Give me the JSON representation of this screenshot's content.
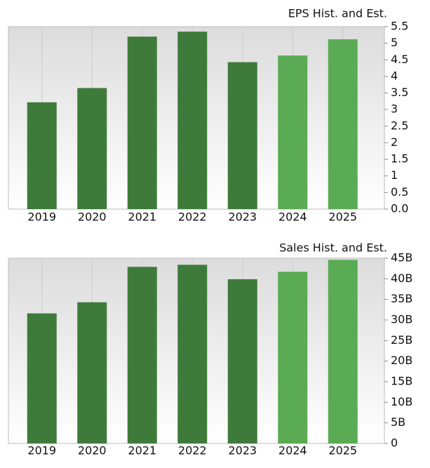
{
  "chart_data": [
    {
      "type": "bar",
      "title": "EPS Hist. and Est.",
      "categories": [
        "2019",
        "2020",
        "2021",
        "2022",
        "2023",
        "2024",
        "2025"
      ],
      "values": [
        3.22,
        3.65,
        5.2,
        5.35,
        4.43,
        4.63,
        5.12
      ],
      "colors": [
        "#3e7b3b",
        "#3e7b3b",
        "#3e7b3b",
        "#3e7b3b",
        "#3e7b3b",
        "#5aab53",
        "#5aab53"
      ],
      "ylim": [
        0,
        5.5
      ],
      "yticks": [
        {
          "value": 0,
          "label": "0.0"
        },
        0.5,
        1,
        1.5,
        2,
        2.5,
        3,
        3.5,
        4,
        4.5,
        5,
        5.5
      ]
    },
    {
      "type": "bar",
      "title": "Sales Hist. and Est.",
      "categories": [
        "2019",
        "2020",
        "2021",
        "2022",
        "2023",
        "2024",
        "2025"
      ],
      "values": [
        31.6,
        34.3,
        42.9,
        43.4,
        39.9,
        41.7,
        44.6
      ],
      "colors": [
        "#3e7b3b",
        "#3e7b3b",
        "#3e7b3b",
        "#3e7b3b",
        "#3e7b3b",
        "#5aab53",
        "#5aab53"
      ],
      "ylim": [
        0,
        45
      ],
      "yticks": [
        0,
        {
          "value": 5,
          "label": "5B"
        },
        {
          "value": 10,
          "label": "10B"
        },
        {
          "value": 15,
          "label": "15B"
        },
        {
          "value": 20,
          "label": "20B"
        },
        {
          "value": 25,
          "label": "25B"
        },
        {
          "value": 30,
          "label": "30B"
        },
        {
          "value": 35,
          "label": "35B"
        },
        {
          "value": 40,
          "label": "40B"
        },
        {
          "value": 45,
          "label": "45B"
        }
      ]
    }
  ]
}
